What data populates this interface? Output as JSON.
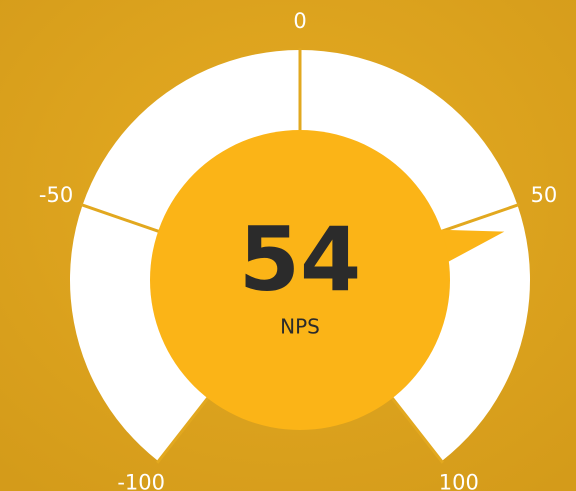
{
  "chart_data": {
    "type": "gauge",
    "value": 54,
    "label": "NPS",
    "ylim": [
      -100,
      100
    ],
    "yticks": [
      -100,
      -50,
      0,
      50,
      100
    ],
    "band_color": "#ffffff",
    "color": "#fbb417"
  }
}
